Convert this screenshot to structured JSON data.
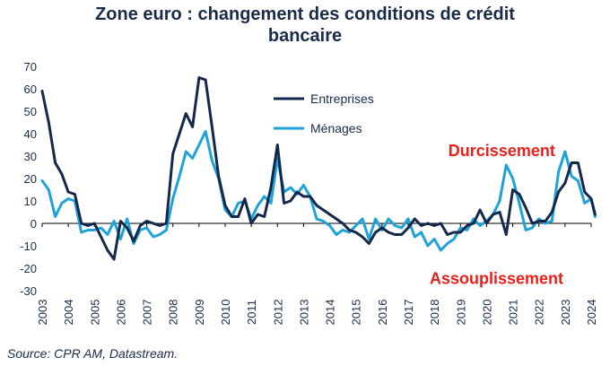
{
  "chart_data": {
    "type": "line",
    "title": [
      "Zone euro : changement des conditions de crédit",
      "bancaire"
    ],
    "ylim": [
      -30,
      70
    ],
    "y_ticks": [
      -30,
      -20,
      -10,
      0,
      10,
      20,
      30,
      40,
      50,
      60,
      70
    ],
    "x_ticks": [
      2003,
      2004,
      2005,
      2006,
      2007,
      2008,
      2009,
      2010,
      2011,
      2012,
      2013,
      2014,
      2015,
      2016,
      2017,
      2018,
      2019,
      2020,
      2021,
      2022,
      2023,
      2024
    ],
    "xlim": [
      2003,
      2024
    ],
    "colors": {
      "Entreprises": "#14284b",
      "Ménages": "#1fa2d8",
      "annotation": "#e8201a"
    },
    "series": [
      {
        "name": "Entreprises",
        "points": [
          [
            2003.0,
            59
          ],
          [
            2003.25,
            45
          ],
          [
            2003.5,
            27
          ],
          [
            2003.75,
            22
          ],
          [
            2004.0,
            14
          ],
          [
            2004.25,
            13
          ],
          [
            2004.5,
            0
          ],
          [
            2004.75,
            -1
          ],
          [
            2005.0,
            0
          ],
          [
            2005.25,
            -6
          ],
          [
            2005.5,
            -12
          ],
          [
            2005.75,
            -16
          ],
          [
            2006.0,
            1
          ],
          [
            2006.25,
            -2
          ],
          [
            2006.5,
            -8
          ],
          [
            2006.75,
            -1
          ],
          [
            2007.0,
            1
          ],
          [
            2007.25,
            0
          ],
          [
            2007.5,
            -1
          ],
          [
            2007.75,
            0
          ],
          [
            2008.0,
            31
          ],
          [
            2008.25,
            40
          ],
          [
            2008.5,
            49
          ],
          [
            2008.75,
            43
          ],
          [
            2009.0,
            65
          ],
          [
            2009.25,
            64
          ],
          [
            2009.5,
            43
          ],
          [
            2009.75,
            21
          ],
          [
            2010.0,
            8
          ],
          [
            2010.25,
            3
          ],
          [
            2010.5,
            3
          ],
          [
            2010.75,
            11
          ],
          [
            2011.0,
            0
          ],
          [
            2011.25,
            4
          ],
          [
            2011.5,
            3
          ],
          [
            2011.75,
            16
          ],
          [
            2012.0,
            35
          ],
          [
            2012.25,
            9
          ],
          [
            2012.5,
            10
          ],
          [
            2012.75,
            14
          ],
          [
            2013.0,
            12
          ],
          [
            2013.25,
            12
          ],
          [
            2013.5,
            8
          ],
          [
            2013.75,
            6
          ],
          [
            2014.0,
            4
          ],
          [
            2014.25,
            2
          ],
          [
            2014.5,
            0
          ],
          [
            2014.75,
            -3
          ],
          [
            2015.0,
            -4
          ],
          [
            2015.25,
            -6
          ],
          [
            2015.5,
            -9
          ],
          [
            2015.75,
            -4
          ],
          [
            2016.0,
            -2
          ],
          [
            2016.25,
            -4
          ],
          [
            2016.5,
            -5
          ],
          [
            2016.75,
            -5
          ],
          [
            2017.0,
            -2
          ],
          [
            2017.25,
            2
          ],
          [
            2017.5,
            -1
          ],
          [
            2017.75,
            0
          ],
          [
            2018.0,
            -1
          ],
          [
            2018.25,
            0
          ],
          [
            2018.5,
            -5
          ],
          [
            2018.75,
            -4
          ],
          [
            2019.0,
            -4
          ],
          [
            2019.25,
            -1
          ],
          [
            2019.5,
            0
          ],
          [
            2019.75,
            6
          ],
          [
            2020.0,
            0
          ],
          [
            2020.25,
            4
          ],
          [
            2020.5,
            5
          ],
          [
            2020.75,
            -5
          ],
          [
            2021.0,
            15
          ],
          [
            2021.25,
            13
          ],
          [
            2021.5,
            7
          ],
          [
            2021.75,
            0
          ],
          [
            2022.0,
            1
          ],
          [
            2022.25,
            1
          ],
          [
            2022.5,
            5
          ],
          [
            2022.75,
            14
          ],
          [
            2023.0,
            18
          ],
          [
            2023.25,
            27
          ],
          [
            2023.5,
            27
          ],
          [
            2023.75,
            14
          ],
          [
            2024.0,
            11
          ],
          [
            2024.15,
            4
          ]
        ]
      },
      {
        "name": "Ménages",
        "points": [
          [
            2003.0,
            19
          ],
          [
            2003.25,
            15
          ],
          [
            2003.5,
            3
          ],
          [
            2003.75,
            9
          ],
          [
            2004.0,
            11
          ],
          [
            2004.25,
            10
          ],
          [
            2004.5,
            -4
          ],
          [
            2004.75,
            -3
          ],
          [
            2005.0,
            -3
          ],
          [
            2005.25,
            -2
          ],
          [
            2005.5,
            -5
          ],
          [
            2005.75,
            1
          ],
          [
            2006.0,
            -7
          ],
          [
            2006.25,
            2
          ],
          [
            2006.5,
            -9
          ],
          [
            2006.75,
            -3
          ],
          [
            2007.0,
            -2
          ],
          [
            2007.25,
            -6
          ],
          [
            2007.5,
            -5
          ],
          [
            2007.75,
            -3
          ],
          [
            2008.0,
            11
          ],
          [
            2008.25,
            21
          ],
          [
            2008.5,
            32
          ],
          [
            2008.75,
            29
          ],
          [
            2009.0,
            35
          ],
          [
            2009.25,
            41
          ],
          [
            2009.5,
            28
          ],
          [
            2009.75,
            20
          ],
          [
            2010.0,
            6
          ],
          [
            2010.25,
            3
          ],
          [
            2010.5,
            9
          ],
          [
            2010.75,
            10
          ],
          [
            2011.0,
            2
          ],
          [
            2011.25,
            8
          ],
          [
            2011.5,
            12
          ],
          [
            2011.75,
            9
          ],
          [
            2012.0,
            29
          ],
          [
            2012.25,
            14
          ],
          [
            2012.5,
            16
          ],
          [
            2012.75,
            13
          ],
          [
            2013.0,
            17
          ],
          [
            2013.25,
            12
          ],
          [
            2013.5,
            2
          ],
          [
            2013.75,
            1
          ],
          [
            2014.0,
            -1
          ],
          [
            2014.25,
            -5
          ],
          [
            2014.5,
            -3
          ],
          [
            2014.75,
            -4
          ],
          [
            2015.0,
            -1
          ],
          [
            2015.25,
            2
          ],
          [
            2015.5,
            -7
          ],
          [
            2015.75,
            2
          ],
          [
            2016.0,
            -3
          ],
          [
            2016.25,
            2
          ],
          [
            2016.5,
            -1
          ],
          [
            2016.75,
            -2
          ],
          [
            2017.0,
            2
          ],
          [
            2017.25,
            -6
          ],
          [
            2017.5,
            -4
          ],
          [
            2017.75,
            -10
          ],
          [
            2018.0,
            -7
          ],
          [
            2018.25,
            -12
          ],
          [
            2018.5,
            -9
          ],
          [
            2018.75,
            -7
          ],
          [
            2019.0,
            -2
          ],
          [
            2019.25,
            -3
          ],
          [
            2019.5,
            2
          ],
          [
            2019.75,
            -1
          ],
          [
            2020.0,
            1
          ],
          [
            2020.25,
            4
          ],
          [
            2020.5,
            10
          ],
          [
            2020.75,
            26
          ],
          [
            2021.0,
            20
          ],
          [
            2021.25,
            9
          ],
          [
            2021.5,
            -3
          ],
          [
            2021.75,
            -2
          ],
          [
            2022.0,
            2
          ],
          [
            2022.25,
            0
          ],
          [
            2022.5,
            1
          ],
          [
            2022.75,
            23
          ],
          [
            2023.0,
            32
          ],
          [
            2023.25,
            21
          ],
          [
            2023.5,
            19
          ],
          [
            2023.75,
            9
          ],
          [
            2024.0,
            11
          ],
          [
            2024.15,
            3
          ]
        ]
      }
    ],
    "annotations": [
      {
        "text": "Durcissement",
        "x": 2020.58,
        "y": 30
      },
      {
        "text": "Assouplissement",
        "x": 2020.38,
        "y": -27
      }
    ],
    "legend": "top-center"
  },
  "source": "Source: CPR AM, Datastream."
}
